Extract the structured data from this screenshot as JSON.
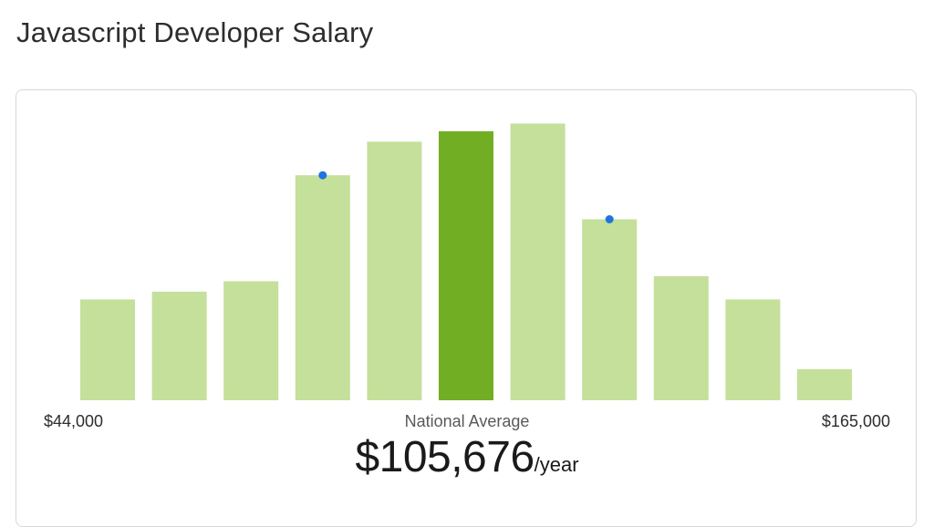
{
  "page": {
    "title": "Javascript Developer Salary"
  },
  "chart_data": {
    "type": "bar",
    "title": "",
    "xlabel": "",
    "ylabel": "",
    "range_min_label": "$44,000",
    "range_max_label": "$165,000",
    "average_label": "National Average",
    "average_value": "$105,676",
    "average_unit": "/year",
    "values": [
      39,
      42,
      46,
      87,
      100,
      104,
      107,
      70,
      48,
      39,
      12
    ],
    "ylim": [
      0,
      110
    ],
    "highlight_index": 5,
    "marker_indices": [
      3,
      7
    ],
    "grid": false,
    "colors": {
      "bar": "#c4e09a",
      "highlight": "#72ae24",
      "marker": "#1f75de"
    }
  }
}
